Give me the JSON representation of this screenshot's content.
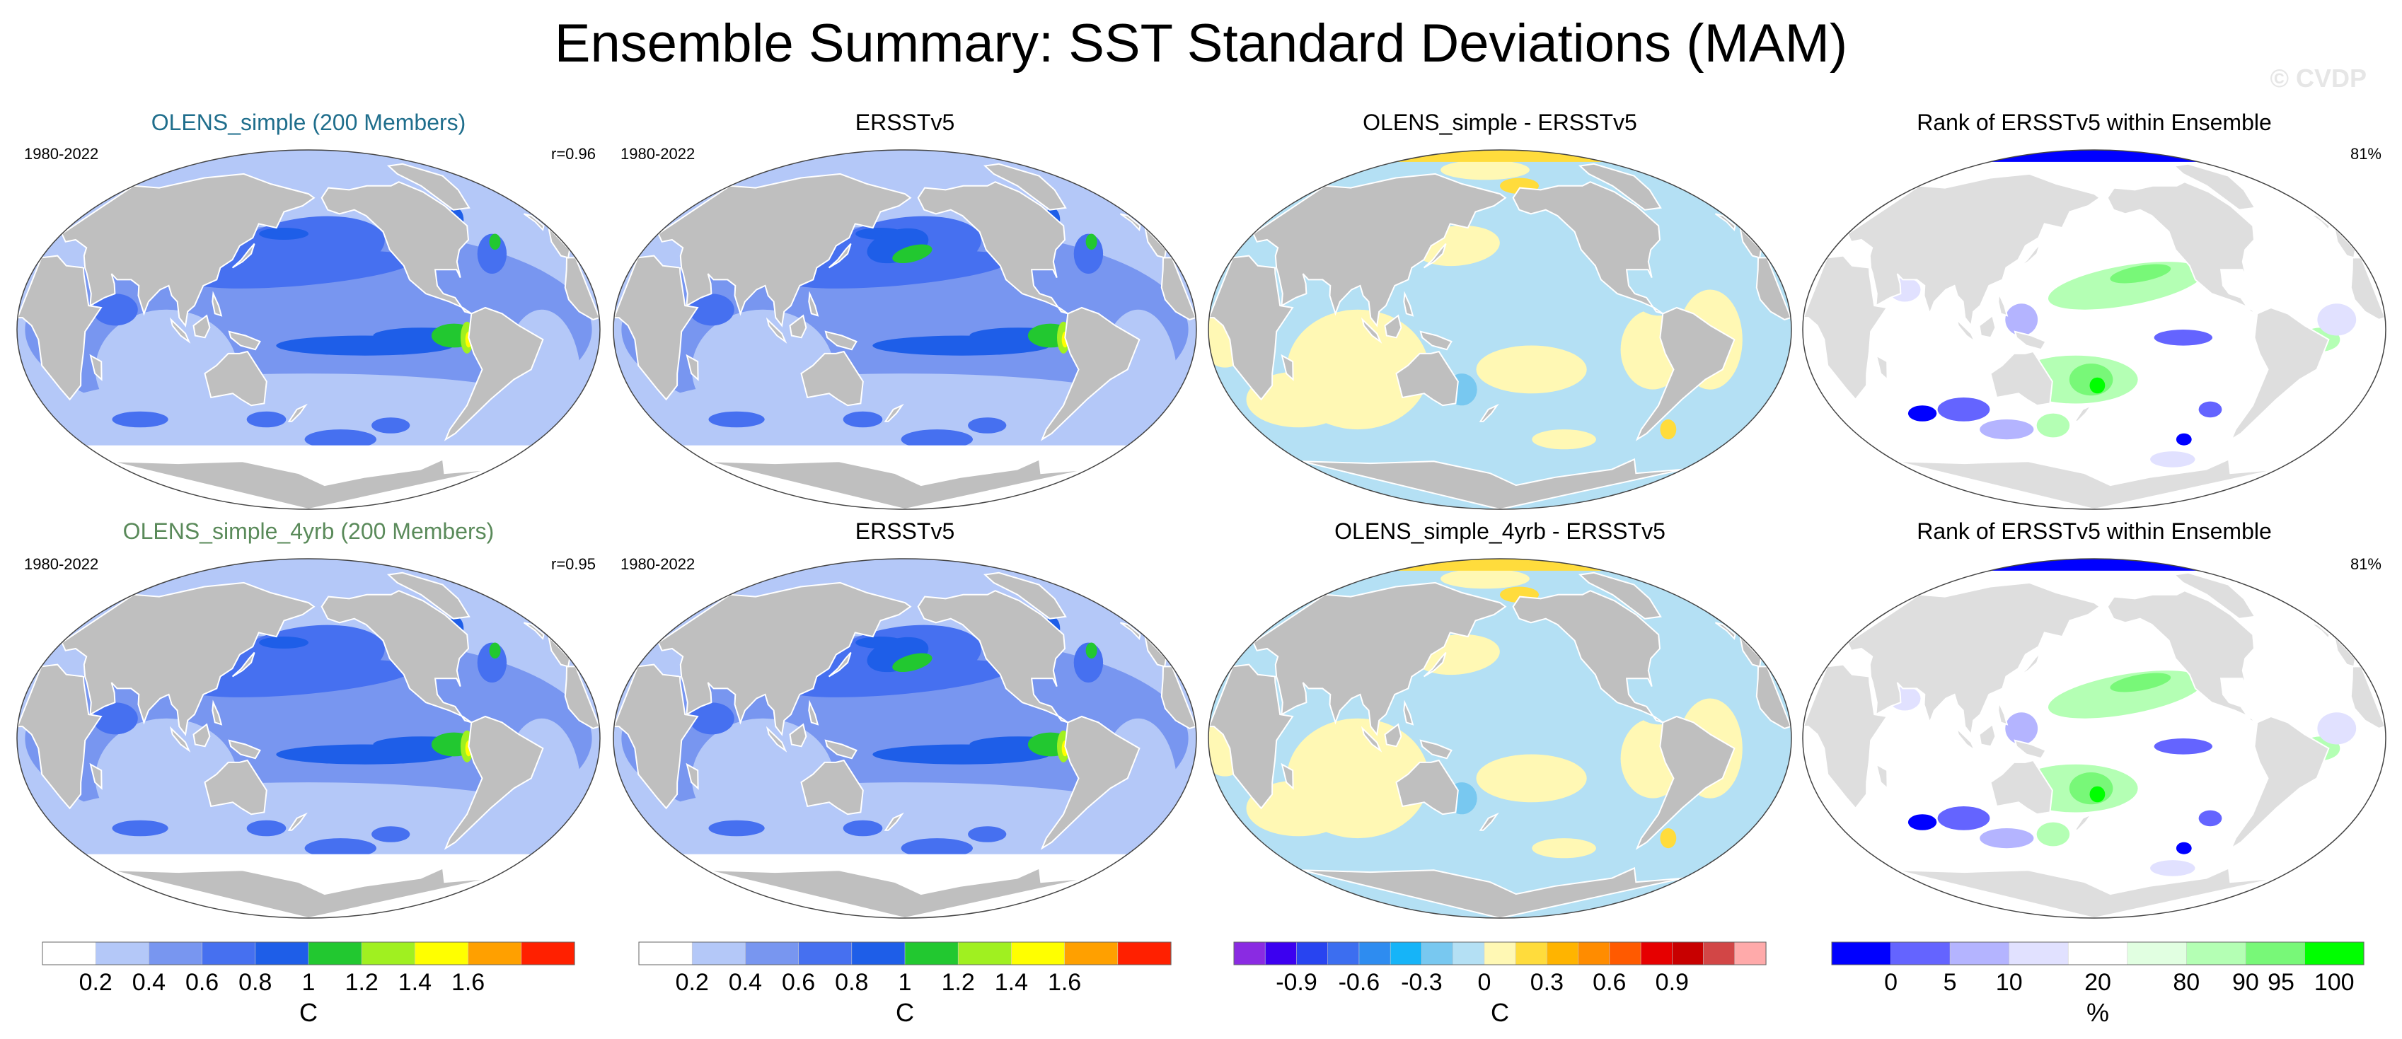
{
  "title": "Ensemble Summary: SST Standard Deviations (MAM)",
  "watermark": "© CVDP",
  "colors": {
    "land": "#bfbfbf",
    "land_light": "#dedede",
    "coast": "#ffffff",
    "model_title_row1": "#1f6e8c",
    "model_title_row2": "#5a8a5a"
  },
  "rows": [
    {
      "panels": [
        {
          "kind": "std",
          "title": "OLENS_simple (200 Members)",
          "title_color": "#1f6e8c",
          "left_label": "1980-2022",
          "right_label": "r=0.96",
          "variant": 0
        },
        {
          "kind": "std",
          "title": "ERSSTv5",
          "title_color": "#000000",
          "left_label": "1980-2022",
          "right_label": "",
          "variant": 1
        },
        {
          "kind": "diff",
          "title": "OLENS_simple - ERSSTv5",
          "title_color": "#000000",
          "left_label": "",
          "right_label": "",
          "variant": 0
        },
        {
          "kind": "rank",
          "title": "Rank of ERSSTv5 within Ensemble",
          "title_color": "#000000",
          "left_label": "",
          "right_label": "81%",
          "variant": 0
        }
      ]
    },
    {
      "panels": [
        {
          "kind": "std",
          "title": "OLENS_simple_4yrb (200 Members)",
          "title_color": "#5a8a5a",
          "left_label": "1980-2022",
          "right_label": "r=0.95",
          "variant": 2
        },
        {
          "kind": "std",
          "title": "ERSSTv5",
          "title_color": "#000000",
          "left_label": "1980-2022",
          "right_label": "",
          "variant": 1
        },
        {
          "kind": "diff",
          "title": "OLENS_simple_4yrb - ERSSTv5",
          "title_color": "#000000",
          "left_label": "",
          "right_label": "",
          "variant": 1
        },
        {
          "kind": "rank",
          "title": "Rank of ERSSTv5 within Ensemble",
          "title_color": "#000000",
          "left_label": "",
          "right_label": "81%",
          "variant": 1
        }
      ]
    }
  ],
  "chart_data": [
    {
      "type": "heatmap",
      "name": "std",
      "units": "C",
      "levels": [
        0.2,
        0.4,
        0.6,
        0.8,
        1,
        1.2,
        1.4,
        1.6
      ],
      "colors": [
        "#ffffff",
        "#b4c8f8",
        "#7896f0",
        "#4670f0",
        "#1e5ee8",
        "#22c830",
        "#a0f020",
        "#ffff00",
        "#ffa000",
        "#ff2000"
      ],
      "colorbar_bins": [
        "#ffffff",
        "#b4c8f8",
        "#7896f0",
        "#4670f0",
        "#1e5ee8",
        "#22c830",
        "#a0f020",
        "#ffff00",
        "#ffa000",
        "#ff2000"
      ],
      "tick_labels": [
        "0.2",
        "0.4",
        "0.6",
        "0.8",
        "1",
        "1.2",
        "1.4",
        "1.6"
      ],
      "panels": [
        "OLENS_simple (200 Members)",
        "ERSSTv5",
        "OLENS_simple_4yrb (200 Members)",
        "ERSSTv5"
      ],
      "pattern_correlations": {
        "OLENS_simple": 0.96,
        "OLENS_simple_4yrb": 0.95
      },
      "period": "1980-2022"
    },
    {
      "type": "heatmap",
      "name": "diff",
      "units": "C",
      "levels": [
        -1.05,
        -0.9,
        -0.75,
        -0.6,
        -0.45,
        -0.3,
        -0.15,
        0,
        0.15,
        0.3,
        0.45,
        0.6,
        0.75,
        0.9,
        1.05
      ],
      "colors": [
        "#8a2be2",
        "#3c00f0",
        "#2844f0",
        "#3c6ef0",
        "#2e8cf0",
        "#16b4f8",
        "#78c8f0",
        "#b4e0f4",
        "#fff8b4",
        "#ffdc3c",
        "#ffb400",
        "#ff8c00",
        "#ff5a00",
        "#e60000",
        "#c80000",
        "#d24646",
        "#ffaaaa"
      ],
      "tick_labels": [
        "-0.9",
        "-0.6",
        "-0.3",
        "0",
        "0.3",
        "0.6",
        "0.9"
      ],
      "panels": [
        "OLENS_simple - ERSSTv5",
        "OLENS_simple_4yrb - ERSSTv5"
      ]
    },
    {
      "type": "heatmap",
      "name": "rank",
      "units": "%",
      "levels": [
        0,
        5,
        10,
        20,
        80,
        90,
        95,
        100
      ],
      "colors": [
        "#0000ff",
        "#6464ff",
        "#b4b4ff",
        "#e1e1ff",
        "#ffffff",
        "#e1ffe1",
        "#b4ffb4",
        "#78f878",
        "#00ff00"
      ],
      "tick_labels": [
        "0",
        "5",
        "10",
        "20",
        "80",
        "90",
        "95",
        "100"
      ],
      "panels": [
        "Rank of ERSSTv5 within Ensemble",
        "Rank of ERSSTv5 within Ensemble"
      ],
      "percent_within_range": "81%"
    }
  ]
}
